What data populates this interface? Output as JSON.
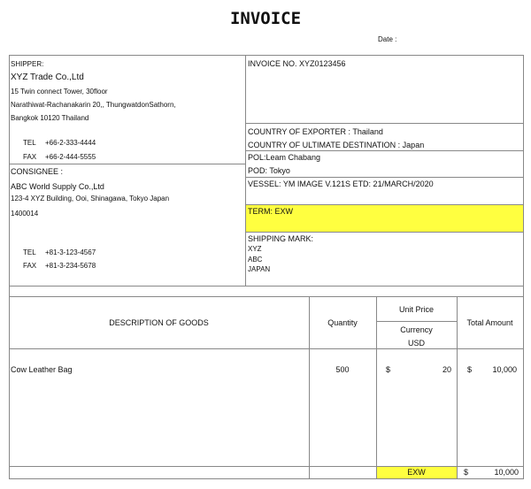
{
  "title": "INVOICE",
  "date_label": "Date :",
  "shipper": {
    "label": "SHIPPER:",
    "name": "XYZ Trade Co.,Ltd",
    "address": [
      "15 Twin connect Tower, 30floor",
      "Narathiwat-Rachanakarin 20,, ThungwatdonSathorn,",
      "Bangkok 10120 Thailand"
    ],
    "tel_label": "TEL",
    "tel": "+66-2-333-4444",
    "fax_label": "FAX",
    "fax": "+66-2-444-5555"
  },
  "consignee": {
    "label": "CONSIGNEE :",
    "name": "ABC World Supply Co.,Ltd",
    "address": [
      "123-4 XYZ Building, Ooi, Shinagawa, Tokyo Japan",
      "1400014"
    ],
    "tel_label": "TEL",
    "tel": "+81-3-123-4567",
    "fax_label": "FAX",
    "fax": "+81-3-234-5678"
  },
  "right": {
    "invoice_no": "INVOICE NO. XYZ0123456",
    "country_exporter": "COUNTRY OF EXPORTER : Thailand",
    "country_destination": "COUNTRY OF ULTIMATE DESTINATION : Japan",
    "pol": "POL:Leam Chabang",
    "pod": "POD: Tokyo",
    "vessel": "VESSEL: YM IMAGE V.121S ETD: 21/MARCH/2020",
    "term": "TERM: EXW",
    "shipping_mark_label": "SHIPPING MARK:",
    "shipping_marks": [
      "XYZ",
      "ABC",
      "JAPAN"
    ]
  },
  "goods": {
    "headers": {
      "description": "DESCRIPTION OF GOODS",
      "quantity": "Quantity",
      "unit_price": "Unit Price",
      "currency": "Currency",
      "currency_code": "USD",
      "total": "Total Amount"
    },
    "items": [
      {
        "description": "Cow Leather Bag",
        "quantity": "500",
        "unit_symbol": "$",
        "unit_price": "20",
        "total_symbol": "$",
        "total": "10,000"
      }
    ],
    "footer": {
      "term": "EXW",
      "total_symbol": "$",
      "total": "10,000"
    }
  },
  "colors": {
    "highlight": "#ffff40",
    "border": "#888888"
  }
}
